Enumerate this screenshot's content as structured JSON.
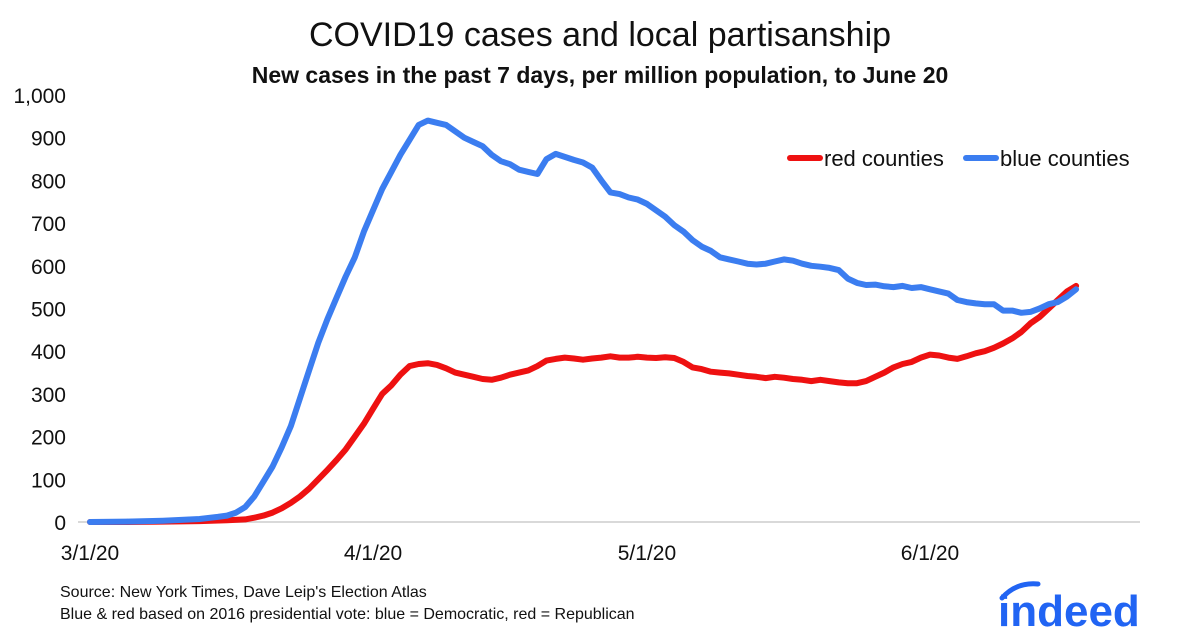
{
  "chart_data": {
    "type": "line",
    "title": "COVID19 cases and local partisanship",
    "subtitle": "New cases in the past 7 days, per million population, to June 20",
    "xlabel": "",
    "ylabel": "",
    "x_tick_labels": [
      "3/1/20",
      "4/1/20",
      "5/1/20",
      "6/1/20"
    ],
    "x_tick_days": [
      0,
      31,
      61,
      92
    ],
    "x_range_days": [
      0,
      111
    ],
    "ylim": [
      0,
      1000
    ],
    "y_ticks": [
      "0",
      "100",
      "200",
      "300",
      "400",
      "500",
      "600",
      "700",
      "800",
      "900",
      "1,000"
    ],
    "y_tick_values": [
      0,
      100,
      200,
      300,
      400,
      500,
      600,
      700,
      800,
      900,
      1000
    ],
    "legend_position": "top-right",
    "series": [
      {
        "name": "red counties",
        "color": "#ee1111",
        "points": [
          [
            0,
            0
          ],
          [
            4,
            0
          ],
          [
            8,
            1
          ],
          [
            12,
            2
          ],
          [
            15,
            4
          ],
          [
            17,
            6
          ],
          [
            18,
            10
          ],
          [
            19,
            15
          ],
          [
            20,
            22
          ],
          [
            21,
            32
          ],
          [
            22,
            45
          ],
          [
            23,
            60
          ],
          [
            24,
            78
          ],
          [
            25,
            100
          ],
          [
            26,
            122
          ],
          [
            27,
            145
          ],
          [
            28,
            170
          ],
          [
            29,
            200
          ],
          [
            30,
            230
          ],
          [
            31,
            265
          ],
          [
            32,
            300
          ],
          [
            33,
            320
          ],
          [
            34,
            345
          ],
          [
            35,
            365
          ],
          [
            36,
            370
          ],
          [
            37,
            372
          ],
          [
            38,
            368
          ],
          [
            39,
            360
          ],
          [
            40,
            350
          ],
          [
            41,
            345
          ],
          [
            42,
            340
          ],
          [
            43,
            335
          ],
          [
            44,
            333
          ],
          [
            45,
            338
          ],
          [
            46,
            345
          ],
          [
            47,
            350
          ],
          [
            48,
            355
          ],
          [
            49,
            365
          ],
          [
            50,
            378
          ],
          [
            51,
            382
          ],
          [
            52,
            385
          ],
          [
            53,
            383
          ],
          [
            54,
            380
          ],
          [
            55,
            383
          ],
          [
            56,
            385
          ],
          [
            57,
            388
          ],
          [
            58,
            385
          ],
          [
            59,
            385
          ],
          [
            60,
            387
          ],
          [
            61,
            385
          ],
          [
            62,
            384
          ],
          [
            63,
            386
          ],
          [
            64,
            384
          ],
          [
            65,
            375
          ],
          [
            66,
            362
          ],
          [
            67,
            358
          ],
          [
            68,
            352
          ],
          [
            69,
            350
          ],
          [
            70,
            348
          ],
          [
            71,
            345
          ],
          [
            72,
            342
          ],
          [
            73,
            340
          ],
          [
            74,
            337
          ],
          [
            75,
            340
          ],
          [
            76,
            338
          ],
          [
            77,
            335
          ],
          [
            78,
            333
          ],
          [
            79,
            330
          ],
          [
            80,
            333
          ],
          [
            81,
            330
          ],
          [
            82,
            327
          ],
          [
            83,
            325
          ],
          [
            84,
            325
          ],
          [
            85,
            330
          ],
          [
            86,
            340
          ],
          [
            87,
            350
          ],
          [
            88,
            362
          ],
          [
            89,
            370
          ],
          [
            90,
            375
          ],
          [
            91,
            385
          ],
          [
            92,
            392
          ],
          [
            93,
            390
          ],
          [
            94,
            385
          ],
          [
            95,
            382
          ],
          [
            96,
            388
          ],
          [
            97,
            395
          ],
          [
            98,
            400
          ],
          [
            99,
            408
          ],
          [
            100,
            418
          ],
          [
            101,
            430
          ],
          [
            102,
            445
          ],
          [
            103,
            465
          ],
          [
            104,
            480
          ],
          [
            105,
            500
          ],
          [
            106,
            520
          ],
          [
            107,
            540
          ],
          [
            108,
            553
          ]
        ]
      },
      {
        "name": "blue counties",
        "color": "#3b7df0",
        "points": [
          [
            0,
            0
          ],
          [
            4,
            1
          ],
          [
            8,
            3
          ],
          [
            10,
            5
          ],
          [
            12,
            7
          ],
          [
            14,
            12
          ],
          [
            15,
            15
          ],
          [
            16,
            22
          ],
          [
            17,
            35
          ],
          [
            18,
            60
          ],
          [
            19,
            95
          ],
          [
            20,
            130
          ],
          [
            21,
            175
          ],
          [
            22,
            225
          ],
          [
            23,
            290
          ],
          [
            24,
            355
          ],
          [
            25,
            420
          ],
          [
            26,
            475
          ],
          [
            27,
            525
          ],
          [
            28,
            575
          ],
          [
            29,
            620
          ],
          [
            30,
            680
          ],
          [
            31,
            730
          ],
          [
            32,
            780
          ],
          [
            33,
            820
          ],
          [
            34,
            860
          ],
          [
            35,
            895
          ],
          [
            36,
            930
          ],
          [
            37,
            940
          ],
          [
            38,
            935
          ],
          [
            39,
            930
          ],
          [
            40,
            915
          ],
          [
            41,
            900
          ],
          [
            42,
            890
          ],
          [
            43,
            880
          ],
          [
            44,
            860
          ],
          [
            45,
            845
          ],
          [
            46,
            838
          ],
          [
            47,
            825
          ],
          [
            48,
            820
          ],
          [
            49,
            815
          ],
          [
            50,
            850
          ],
          [
            51,
            862
          ],
          [
            52,
            855
          ],
          [
            53,
            848
          ],
          [
            54,
            842
          ],
          [
            55,
            830
          ],
          [
            56,
            800
          ],
          [
            57,
            772
          ],
          [
            58,
            768
          ],
          [
            59,
            760
          ],
          [
            60,
            755
          ],
          [
            61,
            745
          ],
          [
            62,
            730
          ],
          [
            63,
            715
          ],
          [
            64,
            695
          ],
          [
            65,
            680
          ],
          [
            66,
            660
          ],
          [
            67,
            645
          ],
          [
            68,
            635
          ],
          [
            69,
            620
          ],
          [
            70,
            615
          ],
          [
            71,
            610
          ],
          [
            72,
            605
          ],
          [
            73,
            603
          ],
          [
            74,
            605
          ],
          [
            75,
            610
          ],
          [
            76,
            615
          ],
          [
            77,
            612
          ],
          [
            78,
            605
          ],
          [
            79,
            600
          ],
          [
            80,
            598
          ],
          [
            81,
            595
          ],
          [
            82,
            590
          ],
          [
            83,
            570
          ],
          [
            84,
            560
          ],
          [
            85,
            555
          ],
          [
            86,
            556
          ],
          [
            87,
            552
          ],
          [
            88,
            550
          ],
          [
            89,
            553
          ],
          [
            90,
            548
          ],
          [
            91,
            550
          ],
          [
            92,
            545
          ],
          [
            93,
            540
          ],
          [
            94,
            535
          ],
          [
            95,
            520
          ],
          [
            96,
            515
          ],
          [
            97,
            512
          ],
          [
            98,
            510
          ],
          [
            99,
            510
          ],
          [
            100,
            495
          ],
          [
            101,
            495
          ],
          [
            102,
            490
          ],
          [
            103,
            492
          ],
          [
            104,
            500
          ],
          [
            105,
            510
          ],
          [
            106,
            515
          ],
          [
            107,
            528
          ],
          [
            108,
            545
          ]
        ]
      }
    ]
  },
  "footer": {
    "source": "Source: New York Times, Dave Leip's Election Atlas",
    "note": "Blue & red based on 2016 presidential vote: blue = Democratic, red = Republican"
  },
  "logo": {
    "text": "indeed",
    "color": "#2164f3"
  }
}
